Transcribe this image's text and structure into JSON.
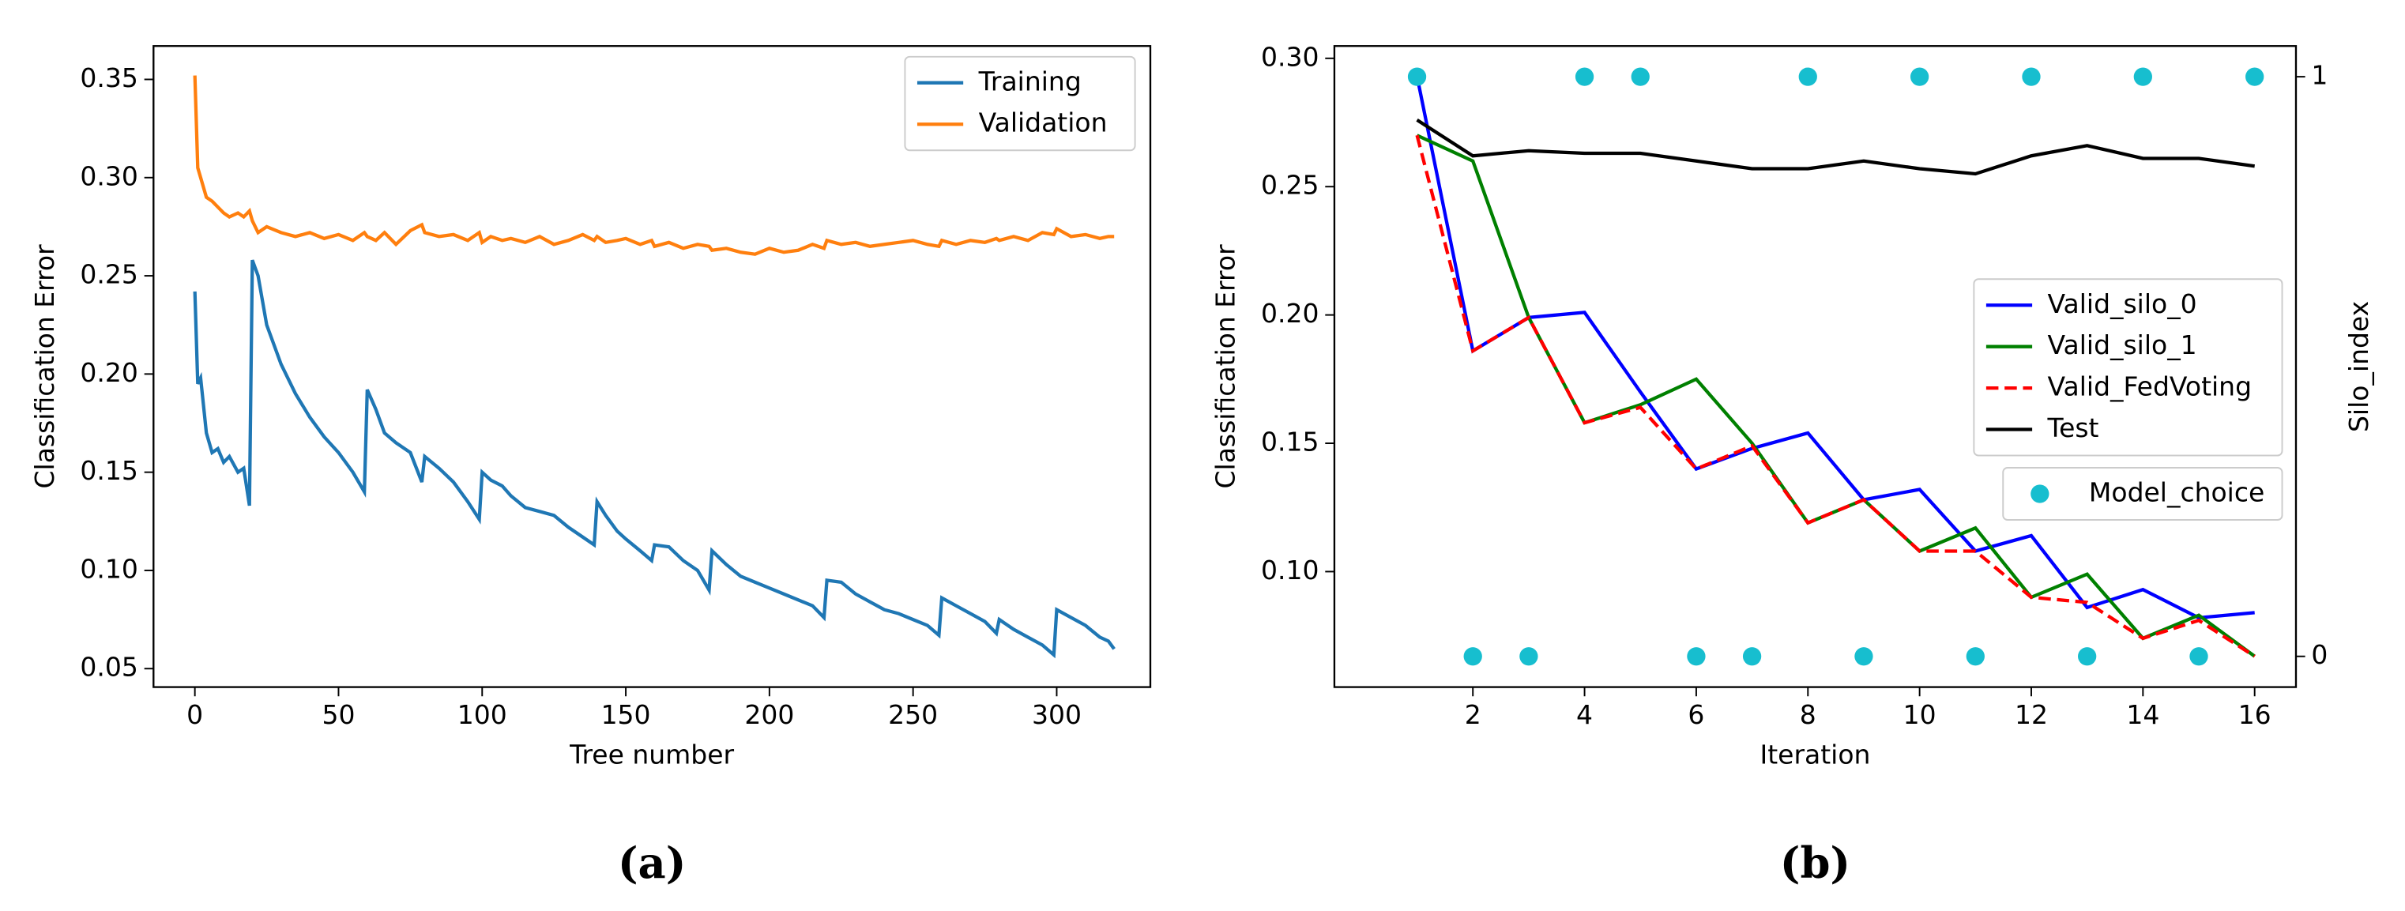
{
  "chart_data": [
    {
      "type": "line",
      "caption": "(a)",
      "xlabel": "Tree number",
      "ylabel": "Classification Error",
      "x": [
        0,
        1,
        2,
        4,
        6,
        8,
        10,
        12,
        15,
        17,
        19,
        20,
        22,
        25,
        30,
        35,
        40,
        45,
        50,
        55,
        59,
        60,
        63,
        66,
        70,
        75,
        79,
        80,
        85,
        90,
        95,
        99,
        100,
        103,
        107,
        110,
        115,
        120,
        125,
        130,
        135,
        139,
        140,
        143,
        147,
        150,
        155,
        159,
        160,
        165,
        170,
        175,
        179,
        180,
        185,
        190,
        195,
        200,
        205,
        210,
        215,
        219,
        220,
        225,
        230,
        235,
        240,
        245,
        250,
        255,
        259,
        260,
        265,
        270,
        275,
        279,
        280,
        285,
        290,
        295,
        299,
        300,
        305,
        310,
        315,
        318,
        320
      ],
      "series": [
        {
          "name": "Training",
          "color": "#1f77b4",
          "values": [
            0.242,
            0.195,
            0.198,
            0.17,
            0.16,
            0.162,
            0.155,
            0.158,
            0.15,
            0.152,
            0.133,
            0.258,
            0.25,
            0.225,
            0.205,
            0.19,
            0.178,
            0.168,
            0.16,
            0.15,
            0.14,
            0.192,
            0.182,
            0.17,
            0.165,
            0.16,
            0.145,
            0.158,
            0.152,
            0.145,
            0.135,
            0.126,
            0.15,
            0.146,
            0.143,
            0.138,
            0.132,
            0.13,
            0.128,
            0.122,
            0.117,
            0.113,
            0.135,
            0.128,
            0.12,
            0.116,
            0.11,
            0.105,
            0.113,
            0.112,
            0.105,
            0.1,
            0.09,
            0.11,
            0.103,
            0.097,
            0.094,
            0.091,
            0.088,
            0.085,
            0.082,
            0.076,
            0.095,
            0.094,
            0.088,
            0.084,
            0.08,
            0.078,
            0.075,
            0.072,
            0.067,
            0.086,
            0.082,
            0.078,
            0.074,
            0.068,
            0.075,
            0.07,
            0.066,
            0.062,
            0.057,
            0.08,
            0.076,
            0.072,
            0.066,
            0.064,
            0.06
          ]
        },
        {
          "name": "Validation",
          "color": "#ff7f0e",
          "values": [
            0.352,
            0.305,
            0.3,
            0.29,
            0.288,
            0.285,
            0.282,
            0.28,
            0.282,
            0.28,
            0.283,
            0.278,
            0.272,
            0.275,
            0.272,
            0.27,
            0.272,
            0.269,
            0.271,
            0.268,
            0.272,
            0.27,
            0.268,
            0.272,
            0.266,
            0.273,
            0.276,
            0.272,
            0.27,
            0.271,
            0.268,
            0.272,
            0.267,
            0.27,
            0.268,
            0.269,
            0.267,
            0.27,
            0.266,
            0.268,
            0.271,
            0.268,
            0.27,
            0.267,
            0.268,
            0.269,
            0.266,
            0.268,
            0.265,
            0.267,
            0.264,
            0.266,
            0.265,
            0.263,
            0.264,
            0.262,
            0.261,
            0.264,
            0.262,
            0.263,
            0.266,
            0.264,
            0.268,
            0.266,
            0.267,
            0.265,
            0.266,
            0.267,
            0.268,
            0.266,
            0.265,
            0.268,
            0.266,
            0.268,
            0.267,
            0.269,
            0.268,
            0.27,
            0.268,
            0.272,
            0.271,
            0.274,
            0.27,
            0.271,
            0.269,
            0.27,
            0.27
          ]
        }
      ],
      "xlim": [
        -14.4,
        332.6
      ],
      "ylim": [
        0.0406,
        0.367
      ],
      "xticks": [
        0,
        50,
        100,
        150,
        200,
        250,
        300
      ],
      "yticks": [
        0.05,
        {
          "value": 0.1,
          "label": "0.10"
        },
        0.15,
        {
          "value": 0.2,
          "label": "0.20"
        },
        0.25,
        {
          "value": 0.3,
          "label": "0.30"
        },
        0.35
      ],
      "legend": "upper right"
    },
    {
      "type": "line",
      "caption": "(b)",
      "xlabel": "Iteration",
      "ylabel": "Classification Error",
      "y2label": "Silo_index",
      "x": [
        1,
        2,
        3,
        4,
        5,
        6,
        7,
        8,
        9,
        10,
        11,
        12,
        13,
        14,
        15,
        16
      ],
      "series": [
        {
          "name": "Valid_silo_0",
          "color": "#0000ff",
          "values": [
            0.293,
            0.186,
            0.199,
            0.201,
            0.17,
            0.14,
            0.148,
            0.154,
            0.128,
            0.132,
            0.108,
            0.114,
            0.086,
            0.093,
            0.082,
            0.084
          ]
        },
        {
          "name": "Valid_silo_1",
          "color": "#008000",
          "values": [
            0.27,
            0.26,
            0.199,
            0.158,
            0.165,
            0.175,
            0.15,
            0.119,
            0.128,
            0.108,
            0.117,
            0.09,
            0.099,
            0.074,
            0.083,
            0.067
          ]
        },
        {
          "name": "Valid_FedVoting",
          "color": "#ff0000",
          "linestyle": "dashed",
          "values": [
            0.27,
            0.186,
            0.199,
            0.158,
            0.164,
            0.14,
            0.149,
            0.119,
            0.128,
            0.108,
            0.108,
            0.09,
            0.088,
            0.074,
            0.081,
            0.067
          ]
        },
        {
          "name": "Test",
          "color": "#000000",
          "values": [
            0.276,
            0.262,
            0.264,
            0.263,
            0.263,
            0.26,
            0.257,
            0.257,
            0.26,
            0.257,
            0.255,
            0.262,
            0.266,
            0.261,
            0.261,
            0.258
          ]
        },
        {
          "name": "Model_choice",
          "color": "#17becf",
          "type": "scatter",
          "axis": "y2",
          "values": [
            1,
            0,
            0,
            1,
            1,
            0,
            0,
            1,
            0,
            1,
            0,
            1,
            0,
            1,
            0,
            1
          ]
        }
      ],
      "xlim": [
        -0.48,
        16.74
      ],
      "ylim": [
        0.055,
        0.3048
      ],
      "y2lim": [
        -0.053,
        1.053
      ],
      "xticks": [
        2,
        4,
        6,
        8,
        10,
        12,
        14,
        16
      ],
      "yticks": [
        {
          "value": 0.1,
          "label": "0.10"
        },
        0.15,
        {
          "value": 0.2,
          "label": "0.20"
        },
        0.25,
        {
          "value": 0.3,
          "label": "0.30"
        }
      ],
      "y2ticks": [
        0,
        1
      ],
      "legend": "center right"
    }
  ]
}
